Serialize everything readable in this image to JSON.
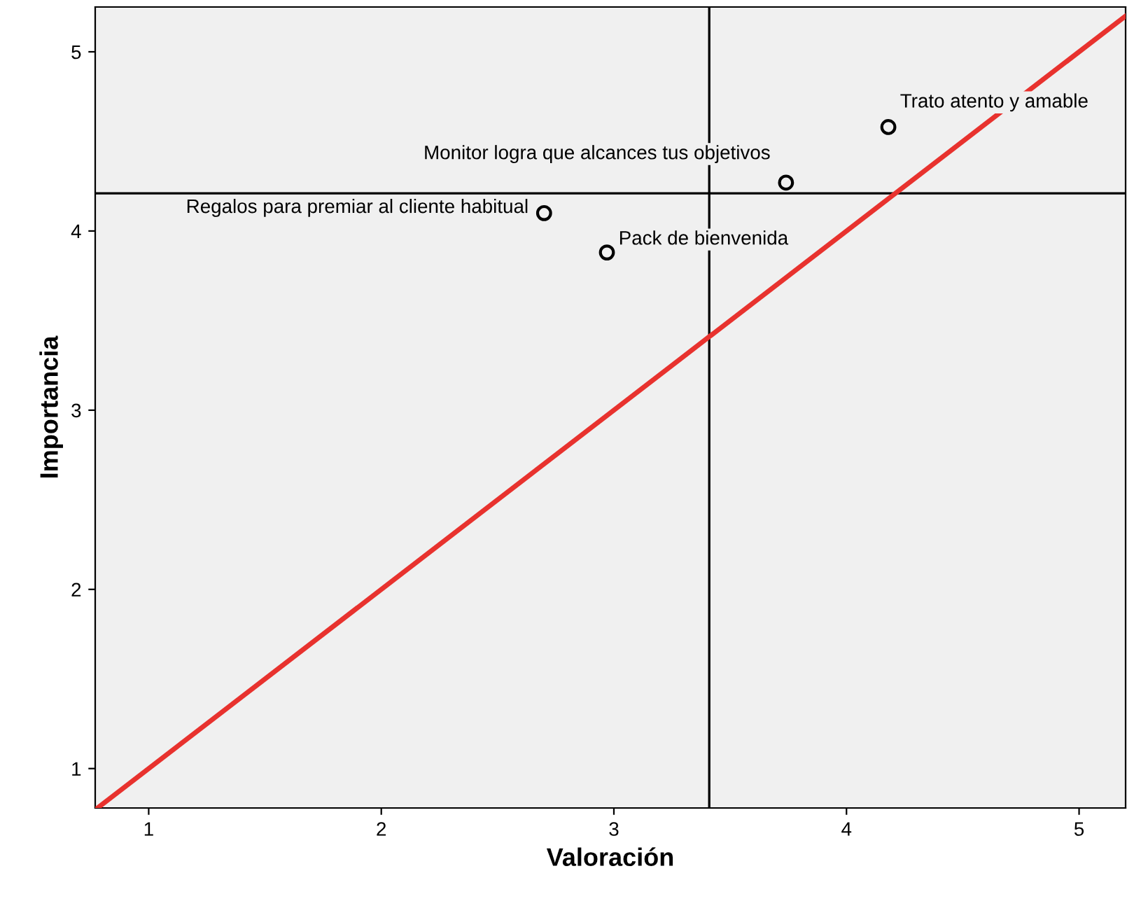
{
  "chart_data": {
    "type": "scatter",
    "xlabel": "Valoración",
    "ylabel": "Importancia",
    "xlim": [
      0.77,
      5.2
    ],
    "ylim": [
      0.78,
      5.25
    ],
    "xticks": [
      1,
      2,
      3,
      4,
      5
    ],
    "yticks": [
      1,
      2,
      3,
      4,
      5
    ],
    "grid": false,
    "series": [
      {
        "marker": "circle",
        "color": "#000000",
        "x": [
          2.7,
          2.97,
          3.74,
          4.18
        ],
        "values": [
          4.1,
          3.88,
          4.27,
          4.58
        ]
      },
      {
        "type": "line",
        "color": "#e8322e",
        "x": [
          0.78,
          5.2
        ],
        "values": [
          0.78,
          5.2
        ]
      }
    ],
    "ref_lines": [
      {
        "axis": "x",
        "value": 3.41,
        "color": "#000000"
      },
      {
        "axis": "y",
        "value": 4.21,
        "color": "#000000"
      }
    ],
    "annotations": [
      {
        "text": "Regalos para premiar al cliente habitual",
        "x": 2.7,
        "y": 4.1
      },
      {
        "text": "Pack de bienvenida",
        "x": 2.97,
        "y": 3.88
      },
      {
        "text": "Monitor logra que alcances tus objetivos",
        "x": 3.74,
        "y": 4.27
      },
      {
        "text": "Trato atento y amable",
        "x": 4.18,
        "y": 4.58
      }
    ]
  }
}
